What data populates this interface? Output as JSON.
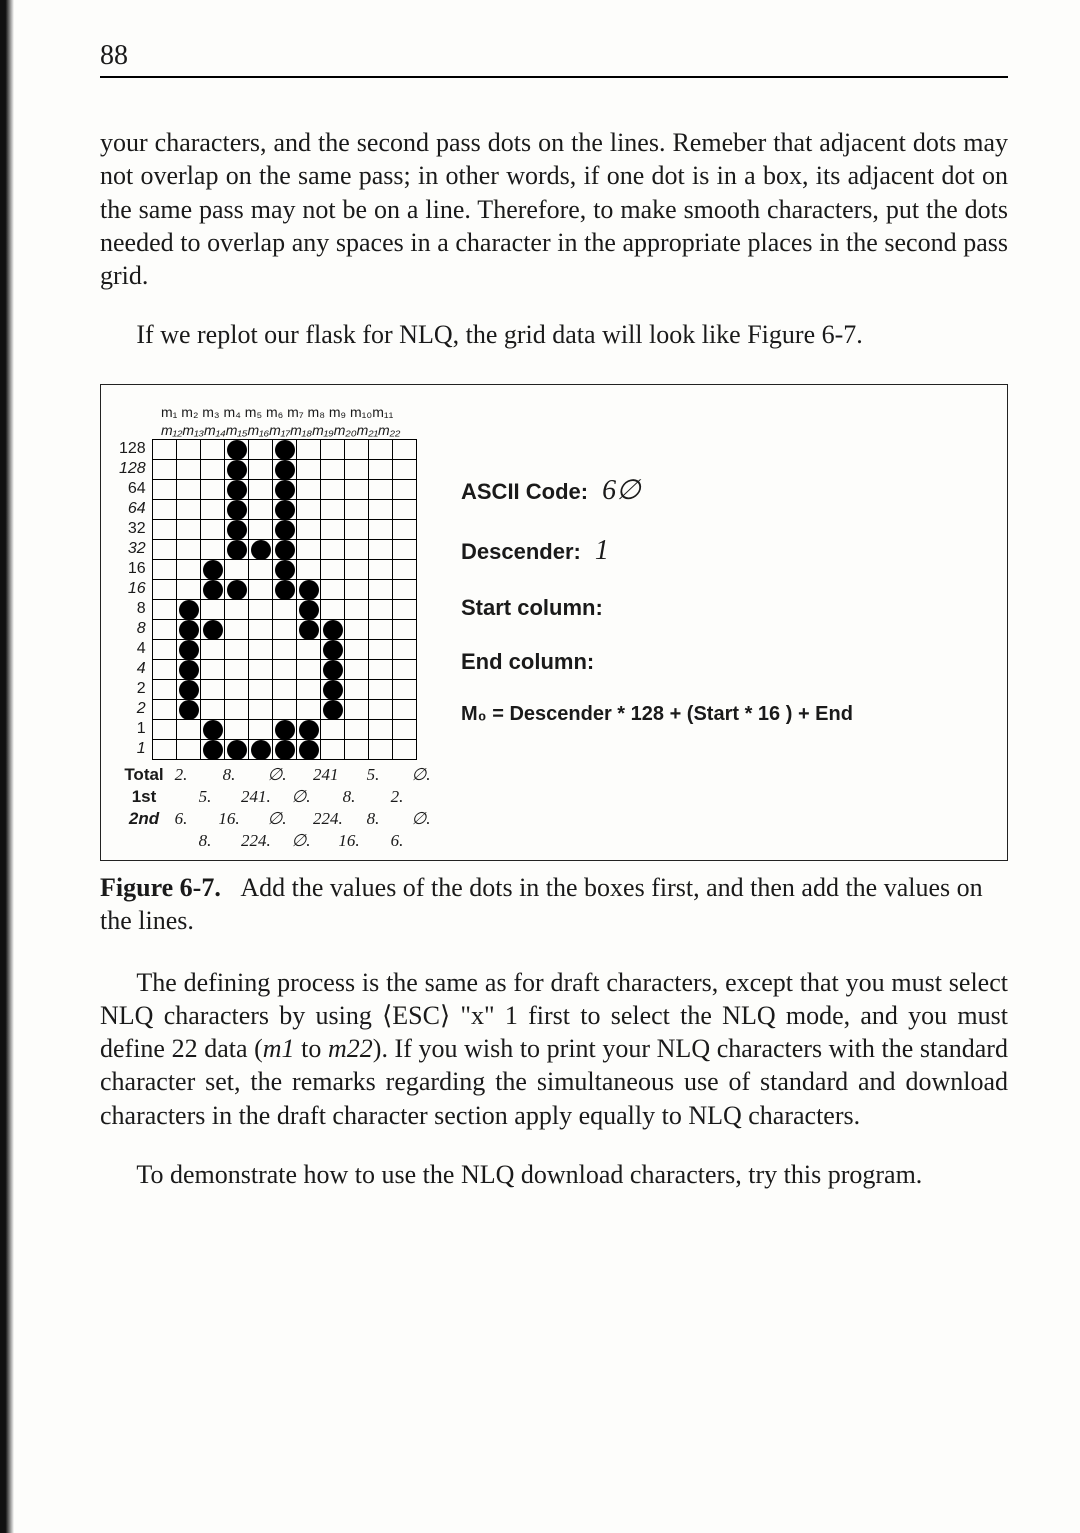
{
  "page_number": "88",
  "para1": "your characters, and the second pass dots on the lines. Remeber that adjacent dots may not overlap on the same pass; in other words, if one dot is in a box, its adjacent dot on the same pass may not be on a line. Therefore, to make smooth characters, put the dots needed to overlap any spaces in a character in the appropriate places in the second pass grid.",
  "para2": "If we replot our flask for NLQ, the grid data will look like Figure 6-7.",
  "figure": {
    "header_row1": "m₁ m₂ m₃ m₄ m₅ m₆ m₇ m₈ m₉ m₁₀m₁₁",
    "header_row2": "m₁₂m₁₃m₁₄m₁₅m₁₆m₁₇m₁₈m₁₉m₂₀m₂₁m₂₂",
    "y_labels": [
      "128",
      "128",
      "64",
      "64",
      "32",
      "32",
      "16",
      "16",
      "8",
      "8",
      "4",
      "4",
      "2",
      "2",
      "1",
      "1"
    ],
    "y_italic_rows": [
      1,
      3,
      5,
      7,
      9,
      11,
      13,
      15
    ],
    "grid": {
      "cols": 11,
      "rows": 16,
      "dots": [
        [
          0,
          3
        ],
        [
          0,
          5
        ],
        [
          1,
          3
        ],
        [
          1,
          5
        ],
        [
          2,
          3
        ],
        [
          2,
          5
        ],
        [
          3,
          3
        ],
        [
          3,
          5
        ],
        [
          4,
          3
        ],
        [
          4,
          5
        ],
        [
          5,
          3
        ],
        [
          5,
          4
        ],
        [
          5,
          5
        ],
        [
          6,
          2
        ],
        [
          6,
          5
        ],
        [
          7,
          2
        ],
        [
          7,
          3
        ],
        [
          7,
          5
        ],
        [
          7,
          6
        ],
        [
          8,
          1
        ],
        [
          8,
          6
        ],
        [
          9,
          1
        ],
        [
          9,
          2
        ],
        [
          9,
          6
        ],
        [
          9,
          7
        ],
        [
          10,
          1
        ],
        [
          10,
          7
        ],
        [
          11,
          1
        ],
        [
          11,
          7
        ],
        [
          12,
          1
        ],
        [
          12,
          7
        ],
        [
          13,
          1
        ],
        [
          13,
          7
        ],
        [
          14,
          2
        ],
        [
          14,
          5
        ],
        [
          14,
          6
        ],
        [
          15,
          2
        ],
        [
          15,
          3
        ],
        [
          15,
          4
        ],
        [
          15,
          5
        ],
        [
          15,
          6
        ]
      ]
    },
    "info": {
      "ascii_label": "ASCII Code:",
      "ascii_val": "6∅",
      "desc_label": "Descender:",
      "desc_val": "1",
      "start_label": "Start column:",
      "end_label": "End column:",
      "formula": "M₀ = Descender * 128 + (Start * 16 ) + End"
    },
    "totals": {
      "labels": [
        "Total",
        "1st",
        "2nd",
        ""
      ],
      "r1": [
        "2.",
        "",
        "8.",
        "",
        "∅.",
        "",
        "241",
        "",
        "5.",
        "",
        "∅."
      ],
      "r2": [
        "",
        "5.",
        "",
        "241.",
        "",
        "∅.",
        "",
        "8.",
        "",
        "2.",
        ""
      ],
      "r3": [
        "6.",
        "",
        "16.",
        "",
        "∅.",
        "",
        "224.",
        "",
        "8.",
        "",
        "∅."
      ],
      "r4": [
        "",
        "8.",
        "",
        "224.",
        "",
        "∅.",
        "",
        "16.",
        "",
        "6.",
        ""
      ]
    }
  },
  "caption_bold": "Figure 6-7.",
  "caption_text": "Add the values of the dots in the boxes first, and then add the values on the lines.",
  "para3": "The defining process is the same as for draft characters, except that you must select NLQ characters by using ⟨ESC⟩ \"x\" 1 first to select the NLQ mode, and you must define 22 data (m1 to m22). If you wish to print your NLQ characters with the standard character set, the remarks regarding the simultaneous use of standard and download characters in the draft character section apply equally to NLQ characters.",
  "para4": "To demonstrate how to use the NLQ download characters, try this program.",
  "colors": {
    "text": "#1a1a1a",
    "bg": "#fdfdfb",
    "rule": "#000000"
  }
}
